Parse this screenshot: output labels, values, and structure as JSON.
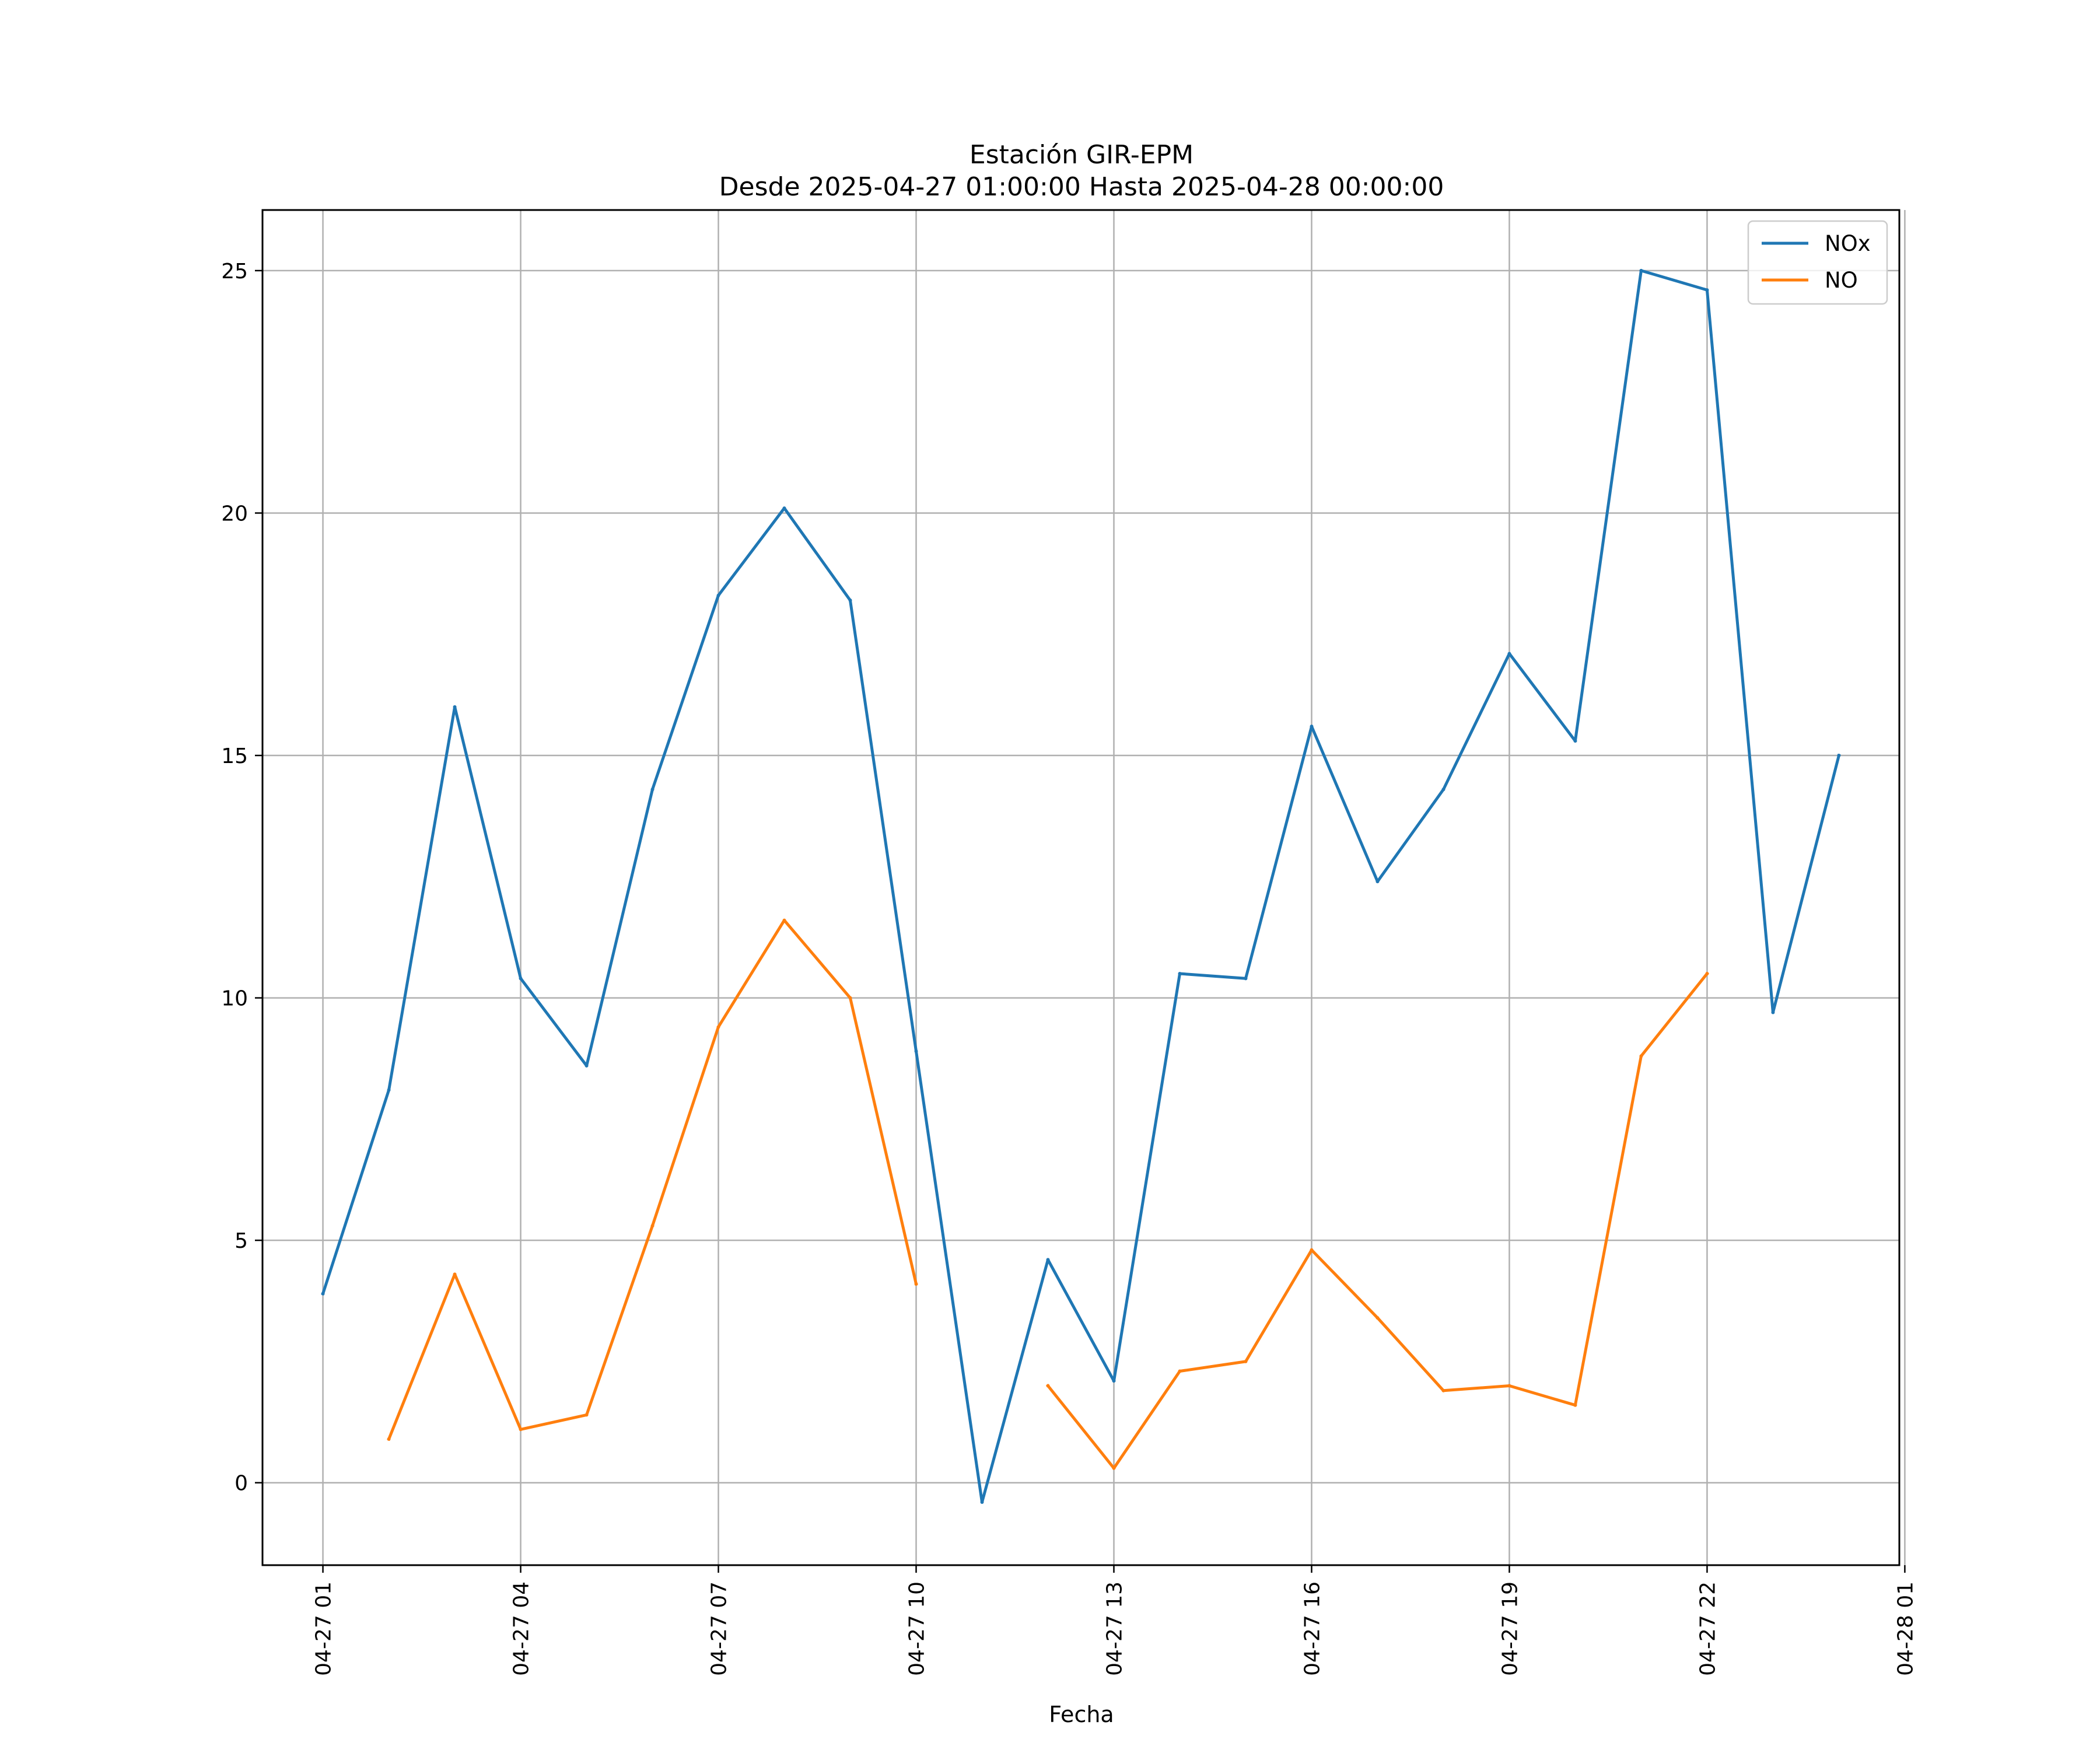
{
  "chart_data": {
    "type": "line",
    "title": "Estación GIR-EPM",
    "subtitle": "Desde 2025-04-27 01:00:00 Hasta 2025-04-28 00:00:00",
    "xlabel": "Fecha",
    "ylabel": "",
    "x": [
      "2025-04-27 01:00",
      "2025-04-27 02:00",
      "2025-04-27 03:00",
      "2025-04-27 04:00",
      "2025-04-27 05:00",
      "2025-04-27 06:00",
      "2025-04-27 07:00",
      "2025-04-27 08:00",
      "2025-04-27 09:00",
      "2025-04-27 10:00",
      "2025-04-27 11:00",
      "2025-04-27 12:00",
      "2025-04-27 13:00",
      "2025-04-27 14:00",
      "2025-04-27 15:00",
      "2025-04-27 16:00",
      "2025-04-27 17:00",
      "2025-04-27 18:00",
      "2025-04-27 19:00",
      "2025-04-27 20:00",
      "2025-04-27 21:00",
      "2025-04-27 22:00",
      "2025-04-27 23:00",
      "2025-04-28 00:00"
    ],
    "xlim": [
      "2025-04-27 00:05",
      "2025-04-28 00:55"
    ],
    "ylim": [
      -1.7,
      26.25
    ],
    "x_ticks": [
      "2025-04-27 01:00",
      "2025-04-27 04:00",
      "2025-04-27 07:00",
      "2025-04-27 10:00",
      "2025-04-27 13:00",
      "2025-04-27 16:00",
      "2025-04-27 19:00",
      "2025-04-27 22:00",
      "2025-04-28 01:00"
    ],
    "x_tick_labels": [
      "04-27 01",
      "04-27 04",
      "04-27 07",
      "04-27 10",
      "04-27 13",
      "04-27 16",
      "04-27 19",
      "04-27 22",
      "04-28 01"
    ],
    "y_ticks": [
      0,
      5,
      10,
      15,
      20,
      25
    ],
    "y_tick_labels": [
      "0",
      "5",
      "10",
      "15",
      "20",
      "25"
    ],
    "grid": true,
    "legend_position": "top-right",
    "series": [
      {
        "name": "NOx",
        "color": "#1f77b4",
        "values": [
          3.9,
          8.1,
          16.0,
          10.4,
          8.6,
          14.3,
          18.3,
          20.1,
          18.2,
          8.9,
          -0.4,
          4.6,
          2.1,
          10.5,
          10.4,
          15.6,
          12.4,
          14.3,
          17.1,
          15.3,
          25.0,
          24.6,
          9.7,
          15.0
        ]
      },
      {
        "name": "NO",
        "color": "#ff7f0e",
        "values": [
          null,
          0.9,
          4.3,
          1.1,
          1.4,
          5.3,
          9.4,
          11.6,
          10.0,
          4.1,
          null,
          2.0,
          0.3,
          2.3,
          2.5,
          4.8,
          3.4,
          1.9,
          2.0,
          1.6,
          8.8,
          10.5,
          null,
          null
        ]
      }
    ]
  }
}
